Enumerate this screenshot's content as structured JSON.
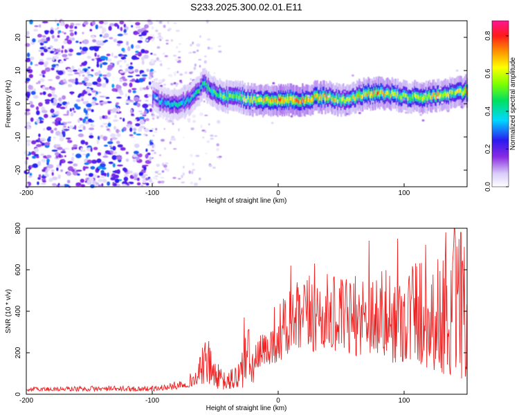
{
  "chart_data": [
    {
      "type": "heatmap",
      "title": "S233.2025.300.02.01.E11",
      "xlabel": "Height of straight line (km)",
      "ylabel": "Frequency (Hz)",
      "xlim": [
        -200,
        150
      ],
      "ylim": [
        -25,
        25
      ],
      "x_ticks": [
        -200,
        -100,
        0,
        100
      ],
      "x_tick_labels": [
        "-200",
        "-100",
        "0",
        "100"
      ],
      "y_ticks": [
        -20,
        -10,
        0,
        10,
        20
      ],
      "y_tick_labels": [
        "-20",
        "-10",
        "0",
        "10",
        "20"
      ],
      "colorbar": {
        "label": "Normalized spectral amplitude",
        "range": [
          0,
          0.88
        ],
        "ticks": [
          0,
          0.2,
          0.4,
          0.6,
          0.8
        ],
        "tick_labels": [
          "0.0",
          "0.2",
          "0.4",
          "0.6",
          "0.8"
        ],
        "colormap": "rainbow (purple low → red/magenta high)"
      },
      "noise_region": {
        "x_range": [
          -200,
          -100
        ],
        "freq_range": [
          -25,
          25
        ],
        "level": "low (0.05–0.3)"
      },
      "sparse_region": {
        "x_range": [
          -100,
          -45
        ],
        "level": "very low (0.02–0.1)"
      },
      "ridge": {
        "description": "dominant frequency band, amplitude up to ~0.85",
        "x": [
          -100,
          -90,
          -80,
          -70,
          -60,
          -50,
          -40,
          -30,
          -20,
          -10,
          0,
          10,
          20,
          30,
          40,
          50,
          60,
          70,
          80,
          90,
          100,
          110,
          120,
          130,
          140,
          150
        ],
        "frequency": [
          2,
          0,
          0,
          1,
          6,
          3,
          2,
          2,
          1,
          1,
          1,
          1,
          1,
          2,
          2,
          1,
          2,
          3,
          3,
          3,
          2,
          2,
          2,
          3,
          3,
          4
        ],
        "peak_amplitude": [
          0.35,
          0.4,
          0.45,
          0.45,
          0.5,
          0.55,
          0.6,
          0.65,
          0.7,
          0.75,
          0.85,
          0.88,
          0.8,
          0.8,
          0.75,
          0.65,
          0.7,
          0.75,
          0.8,
          0.7,
          0.65,
          0.7,
          0.75,
          0.7,
          0.65,
          0.75
        ]
      }
    },
    {
      "type": "line",
      "title": "",
      "xlabel": "Height of straight line (km)",
      "ylabel": "SNR (10 * v/v)",
      "xlim": [
        -200,
        150
      ],
      "ylim": [
        0,
        800
      ],
      "x_ticks": [
        -200,
        -100,
        0,
        100
      ],
      "x_tick_labels": [
        "-200",
        "-100",
        "0",
        "100"
      ],
      "y_ticks": [
        0,
        200,
        400,
        600,
        800
      ],
      "y_tick_labels": [
        "0",
        "200",
        "400",
        "600",
        "800"
      ],
      "color": "#ee2222",
      "envelope": {
        "x": [
          -200,
          -150,
          -100,
          -85,
          -75,
          -65,
          -60,
          -55,
          -50,
          -45,
          -40,
          -30,
          -25,
          -20,
          -15,
          -10,
          -5,
          0,
          10,
          20,
          30,
          40,
          50,
          60,
          70,
          80,
          90,
          100,
          110,
          120,
          130,
          140,
          145,
          150
        ],
        "low": [
          15,
          15,
          15,
          20,
          30,
          40,
          50,
          40,
          30,
          20,
          20,
          20,
          30,
          50,
          100,
          130,
          150,
          150,
          180,
          200,
          200,
          220,
          200,
          180,
          200,
          180,
          150,
          150,
          150,
          120,
          100,
          80,
          60,
          60
        ],
        "high": [
          35,
          40,
          40,
          55,
          80,
          120,
          230,
          260,
          170,
          120,
          100,
          200,
          370,
          230,
          280,
          320,
          360,
          450,
          520,
          560,
          600,
          580,
          560,
          570,
          610,
          620,
          600,
          640,
          700,
          650,
          690,
          760,
          780,
          700
        ],
        "peaks": [
          [
            -58,
            250
          ],
          [
            -27,
            370
          ],
          [
            -3,
            420
          ],
          [
            10,
            620
          ],
          [
            29,
            630
          ],
          [
            72,
            740
          ],
          [
            95,
            750
          ],
          [
            117,
            720
          ],
          [
            133,
            780
          ],
          [
            140,
            800
          ],
          [
            145,
            780
          ]
        ]
      }
    }
  ]
}
